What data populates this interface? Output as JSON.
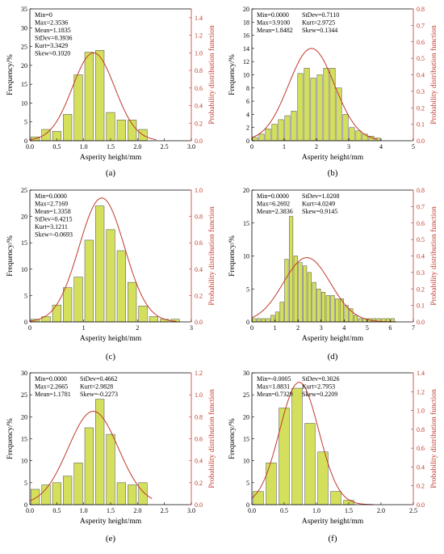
{
  "figure": {
    "bar_fill": "#d4e05c",
    "bar_stroke": "#4a4a4a",
    "curve_color": "#c0392b",
    "left_axis_color": "#000000",
    "right_axis_color": "#c0392b"
  },
  "chart_data": [
    {
      "type": "bar",
      "label": "(a)",
      "xlabel": "Asperity height/mm",
      "ylabel": "Frequency/%",
      "y2label": "Probability distribution function",
      "xlim": [
        0,
        3.0
      ],
      "xticks": [
        "0.0",
        "0.5",
        "1.0",
        "1.5",
        "2.0",
        "2.5",
        "3.0"
      ],
      "ylim": [
        0,
        35
      ],
      "yticks": [
        0,
        5,
        10,
        15,
        20,
        25,
        30,
        35
      ],
      "y2lim": [
        0,
        1.5
      ],
      "y2ticks": [
        "0.0",
        "0.2",
        "0.4",
        "0.6",
        "0.8",
        "1.0",
        "1.2",
        "1.4"
      ],
      "bin_width": 0.2,
      "bin_centers": [
        0.1,
        0.3,
        0.5,
        0.7,
        0.9,
        1.1,
        1.3,
        1.5,
        1.7,
        1.9,
        2.1
      ],
      "values": [
        1.0,
        3.0,
        2.5,
        7.0,
        17.5,
        23.5,
        24.0,
        7.5,
        5.5,
        5.5,
        3.0
      ],
      "stats": [
        "Min=0",
        "Max=2.3536",
        "Mean=1.1835",
        "StDev=0.3936",
        "Kurt=3.3429",
        "Skew=0.1020"
      ],
      "mean": 1.1835,
      "stdev": 0.3936,
      "curve_range": [
        0,
        2.35
      ],
      "curve_peak_y2": 1.0
    },
    {
      "type": "bar",
      "label": "(b)",
      "xlabel": "Asperity height/mm",
      "ylabel": "Frequency/%",
      "y2label": "Probability distribution function",
      "xlim": [
        0,
        5
      ],
      "xticks": [
        "0",
        "1",
        "2",
        "3",
        "4",
        "5"
      ],
      "ylim": [
        0,
        20
      ],
      "yticks": [
        0,
        2,
        4,
        6,
        8,
        10,
        12,
        14,
        16,
        18,
        20
      ],
      "y2lim": [
        0,
        0.8
      ],
      "y2ticks": [
        "0.0",
        "0.1",
        "0.2",
        "0.3",
        "0.4",
        "0.5",
        "0.6",
        "0.7",
        "0.8"
      ],
      "bin_width": 0.2,
      "bin_centers": [
        0.1,
        0.3,
        0.5,
        0.7,
        0.9,
        1.1,
        1.3,
        1.5,
        1.7,
        1.9,
        2.1,
        2.3,
        2.5,
        2.7,
        2.9,
        3.1,
        3.3,
        3.5,
        3.7,
        3.9
      ],
      "values": [
        0.5,
        1.0,
        1.8,
        2.5,
        3.2,
        3.8,
        4.5,
        10.2,
        11.0,
        9.5,
        10.0,
        11.0,
        11.0,
        8.0,
        4.0,
        2.0,
        1.5,
        1.0,
        0.7,
        0.4
      ],
      "stats": [
        "Min=0.0000",
        "Max=3.9100",
        "Mean=1.8482",
        "StDev=0.7110",
        "Kurt=2.9725",
        "Skew=0.1344"
      ],
      "mean": 1.8482,
      "stdev": 0.711,
      "curve_range": [
        0,
        3.9
      ],
      "curve_peak_y2": 0.56
    },
    {
      "type": "bar",
      "label": "(c)",
      "xlabel": "Asperity height/mm",
      "ylabel": "Frequency/%",
      "y2label": "Probability distribution function",
      "xlim": [
        0,
        3
      ],
      "xticks": [
        "0",
        "1",
        "2",
        "3"
      ],
      "ylim": [
        0,
        25
      ],
      "yticks": [
        0,
        5,
        10,
        15,
        20,
        25
      ],
      "y2lim": [
        0,
        1.0
      ],
      "y2ticks": [
        "0.0",
        "0.2",
        "0.4",
        "0.6",
        "0.8",
        "1.0"
      ],
      "bin_width": 0.2,
      "bin_centers": [
        0.1,
        0.3,
        0.5,
        0.7,
        0.9,
        1.1,
        1.3,
        1.5,
        1.7,
        1.9,
        2.1,
        2.3,
        2.5,
        2.7
      ],
      "values": [
        0.5,
        1.0,
        3.2,
        6.5,
        8.5,
        15.5,
        22.0,
        17.5,
        13.5,
        7.5,
        3.0,
        1.0,
        0.5,
        0.5
      ],
      "stats": [
        "Min=0.0000",
        "Max=2.7169",
        "Mean=1.3358",
        "StDev=0.4215",
        "Kurt=3.1211",
        "Skew=-0.0693"
      ],
      "mean": 1.3358,
      "stdev": 0.4215,
      "curve_range": [
        0,
        2.72
      ],
      "curve_peak_y2": 0.94
    },
    {
      "type": "bar",
      "label": "(d)",
      "xlabel": "Asperity height/mm",
      "ylabel": "Frequency/%",
      "y2label": "Probability distribution function",
      "xlim": [
        0,
        7
      ],
      "xticks": [
        "0",
        "1",
        "2",
        "3",
        "4",
        "5",
        "6",
        "7"
      ],
      "ylim": [
        0,
        20
      ],
      "yticks": [
        0,
        5,
        10,
        15,
        20
      ],
      "y2lim": [
        0,
        0.8
      ],
      "y2ticks": [
        "0.0",
        "0.1",
        "0.2",
        "0.3",
        "0.4",
        "0.5",
        "0.6",
        "0.7",
        "0.8"
      ],
      "bin_width": 0.2,
      "bin_centers": [
        0.1,
        0.3,
        0.5,
        0.7,
        0.9,
        1.1,
        1.3,
        1.5,
        1.7,
        1.9,
        2.1,
        2.3,
        2.5,
        2.7,
        2.9,
        3.1,
        3.3,
        3.5,
        3.7,
        3.9,
        4.1,
        4.3,
        4.5,
        4.7,
        4.9,
        5.1,
        5.3,
        5.5,
        5.7,
        5.9,
        6.1
      ],
      "values": [
        0.5,
        0.5,
        0.5,
        0.5,
        1.0,
        1.5,
        3.0,
        9.5,
        16.0,
        10.0,
        9.0,
        8.5,
        7.5,
        6.0,
        5.0,
        4.5,
        4.0,
        4.0,
        3.5,
        3.5,
        2.5,
        2.0,
        1.0,
        0.5,
        0.5,
        0.5,
        0.5,
        0.5,
        0.5,
        0.5,
        0.5
      ],
      "stats": [
        "Min=0.0000",
        "Max=6.2692",
        "Mean=2.3836",
        "StDev=1.0208",
        "Kurt=4.0249",
        "Skew=0.9145"
      ],
      "mean": 2.3836,
      "stdev": 1.0208,
      "curve_range": [
        0,
        6.27
      ],
      "curve_peak_y2": 0.39
    },
    {
      "type": "bar",
      "label": "(e)",
      "xlabel": "Asperity height/mm",
      "ylabel": "Frequency/%",
      "y2label": "Probability distribution function",
      "xlim": [
        0,
        3.0
      ],
      "xticks": [
        "0.0",
        "0.5",
        "1.0",
        "1.5",
        "2.0",
        "2.5",
        "3.0"
      ],
      "ylim": [
        0,
        30
      ],
      "yticks": [
        0,
        5,
        10,
        15,
        20,
        25,
        30
      ],
      "y2lim": [
        0,
        1.2
      ],
      "y2ticks": [
        "0.0",
        "0.2",
        "0.4",
        "0.6",
        "0.8",
        "1.0",
        "1.2"
      ],
      "bin_width": 0.2,
      "bin_centers": [
        0.1,
        0.3,
        0.5,
        0.7,
        0.9,
        1.1,
        1.3,
        1.5,
        1.7,
        1.9,
        2.1
      ],
      "values": [
        3.5,
        4.5,
        5.0,
        6.5,
        9.5,
        17.5,
        24.0,
        16.0,
        5.0,
        4.5,
        5.0
      ],
      "stats": [
        "Min=0.0000",
        "Max=2.2665",
        "Mean=1.1781",
        "StDev=0.4662",
        "Kurt=2.9828",
        "Skew=-0.2273"
      ],
      "mean": 1.1781,
      "stdev": 0.4662,
      "curve_range": [
        0,
        2.27
      ],
      "curve_peak_y2": 0.85
    },
    {
      "type": "bar",
      "label": "(f)",
      "xlabel": "Asperity height/mm",
      "ylabel": "Frequency/%",
      "y2label": "Probability distribution function",
      "xlim": [
        0,
        2.5
      ],
      "xticks": [
        "0.0",
        "0.5",
        "1.0",
        "1.5",
        "2.0",
        "2.5"
      ],
      "ylim": [
        0,
        30
      ],
      "yticks": [
        0,
        5,
        10,
        15,
        20,
        25,
        30
      ],
      "y2lim": [
        0,
        1.4
      ],
      "y2ticks": [
        "0.0",
        "0.2",
        "0.4",
        "0.6",
        "0.8",
        "1.0",
        "1.2",
        "1.4"
      ],
      "bin_width": 0.2,
      "bin_centers": [
        0.1,
        0.3,
        0.5,
        0.7,
        0.9,
        1.1,
        1.3,
        1.5
      ],
      "values": [
        3.0,
        9.5,
        22.0,
        26.5,
        18.5,
        12.0,
        3.0,
        1.0
      ],
      "stats": [
        "Min=-0.0005",
        "Max=1.8831",
        "Mean=0.7329",
        "StDev=0.3026",
        "Kurt=2.7953",
        "Skew=0.2209"
      ],
      "mean": 0.7329,
      "stdev": 0.3026,
      "curve_range": [
        0,
        1.88
      ],
      "curve_peak_y2": 1.3
    }
  ]
}
